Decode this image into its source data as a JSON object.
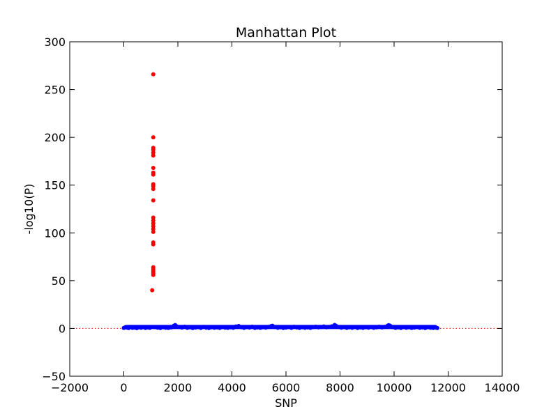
{
  "chart_data": {
    "type": "scatter",
    "title": "Manhattan Plot",
    "xlabel": "SNP",
    "ylabel": "-log10(P)",
    "xlim": [
      -2000,
      14000
    ],
    "ylim": [
      -50,
      300
    ],
    "xticks": [
      -2000,
      0,
      2000,
      4000,
      6000,
      8000,
      10000,
      12000,
      14000
    ],
    "yticks": [
      -50,
      0,
      50,
      100,
      150,
      200,
      250,
      300
    ],
    "xtick_labels": [
      "−2000",
      "0",
      "2000",
      "4000",
      "6000",
      "8000",
      "10000",
      "12000",
      "14000"
    ],
    "ytick_labels": [
      "−50",
      "0",
      "50",
      "100",
      "150",
      "200",
      "250",
      "300"
    ],
    "threshold": {
      "y": 0,
      "color": "#ff0000",
      "style": "dotted"
    },
    "grid": false,
    "series": [
      {
        "color": "#ff0000",
        "points": [
          [
            1090,
            266
          ],
          [
            1090,
            200
          ],
          [
            1090,
            189
          ],
          [
            1090,
            187
          ],
          [
            1090,
            184
          ],
          [
            1090,
            181
          ],
          [
            1090,
            168
          ],
          [
            1090,
            163
          ],
          [
            1090,
            161
          ],
          [
            1090,
            151
          ],
          [
            1090,
            149
          ],
          [
            1090,
            146
          ],
          [
            1090,
            134
          ],
          [
            1090,
            116
          ],
          [
            1090,
            113
          ],
          [
            1090,
            110
          ],
          [
            1090,
            107
          ],
          [
            1090,
            104
          ],
          [
            1090,
            101
          ],
          [
            1090,
            90
          ],
          [
            1090,
            88
          ],
          [
            1090,
            64
          ],
          [
            1090,
            62
          ],
          [
            1090,
            60
          ],
          [
            1090,
            58
          ],
          [
            1090,
            56
          ],
          [
            1050,
            40
          ]
        ]
      },
      {
        "color": "#0000ff",
        "x_range": [
          0,
          11600
        ],
        "points": [
          [
            0,
            0.5
          ],
          [
            60,
            1.2
          ],
          [
            120,
            0.8
          ],
          [
            180,
            0.4
          ],
          [
            250,
            1.5
          ],
          [
            320,
            0.6
          ],
          [
            400,
            0.9
          ],
          [
            480,
            0.3
          ],
          [
            560,
            1.1
          ],
          [
            640,
            0.7
          ],
          [
            720,
            1.4
          ],
          [
            800,
            0.5
          ],
          [
            880,
            1.0
          ],
          [
            960,
            0.6
          ],
          [
            1150,
            1.3
          ],
          [
            1250,
            0.8
          ],
          [
            1350,
            0.4
          ],
          [
            1450,
            1.2
          ],
          [
            1550,
            0.7
          ],
          [
            1650,
            0.5
          ],
          [
            1750,
            1.0
          ],
          [
            1850,
            2.8
          ],
          [
            1900,
            3.5
          ],
          [
            1950,
            2.2
          ],
          [
            2050,
            1.5
          ],
          [
            2150,
            0.9
          ],
          [
            2250,
            1.8
          ],
          [
            2350,
            0.6
          ],
          [
            2450,
            1.1
          ],
          [
            2550,
            0.4
          ],
          [
            2650,
            0.9
          ],
          [
            2750,
            1.3
          ],
          [
            2850,
            0.5
          ],
          [
            2950,
            1.6
          ],
          [
            3050,
            0.8
          ],
          [
            3150,
            0.4
          ],
          [
            3250,
            1.2
          ],
          [
            3350,
            0.7
          ],
          [
            3450,
            1.0
          ],
          [
            3550,
            0.5
          ],
          [
            3650,
            1.4
          ],
          [
            3750,
            0.8
          ],
          [
            3850,
            0.6
          ],
          [
            3950,
            1.1
          ],
          [
            4050,
            0.7
          ],
          [
            4150,
            2.0
          ],
          [
            4250,
            2.5
          ],
          [
            4350,
            1.2
          ],
          [
            4450,
            0.6
          ],
          [
            4550,
            1.3
          ],
          [
            4650,
            0.9
          ],
          [
            4750,
            1.8
          ],
          [
            4850,
            0.5
          ],
          [
            4950,
            1.0
          ],
          [
            5050,
            0.6
          ],
          [
            5150,
            1.2
          ],
          [
            5250,
            0.8
          ],
          [
            5350,
            1.6
          ],
          [
            5450,
            2.4
          ],
          [
            5500,
            2.8
          ],
          [
            5600,
            1.4
          ],
          [
            5700,
            0.7
          ],
          [
            5800,
            1.1
          ],
          [
            5900,
            0.5
          ],
          [
            6000,
            0.9
          ],
          [
            6100,
            1.4
          ],
          [
            6200,
            0.6
          ],
          [
            6300,
            1.7
          ],
          [
            6400,
            1.0
          ],
          [
            6500,
            0.5
          ],
          [
            6600,
            1.2
          ],
          [
            6700,
            0.7
          ],
          [
            6800,
            1.0
          ],
          [
            6900,
            0.6
          ],
          [
            7000,
            1.3
          ],
          [
            7100,
            1.8
          ],
          [
            7200,
            1.1
          ],
          [
            7300,
            1.5
          ],
          [
            7400,
            2.0
          ],
          [
            7500,
            1.2
          ],
          [
            7600,
            1.6
          ],
          [
            7700,
            2.2
          ],
          [
            7800,
            3.6
          ],
          [
            7850,
            2.8
          ],
          [
            7950,
            1.5
          ],
          [
            8050,
            0.8
          ],
          [
            8150,
            1.3
          ],
          [
            8250,
            0.6
          ],
          [
            8350,
            1.1
          ],
          [
            8450,
            0.7
          ],
          [
            8550,
            1.4
          ],
          [
            8650,
            0.5
          ],
          [
            8750,
            1.0
          ],
          [
            8850,
            0.6
          ],
          [
            8950,
            1.2
          ],
          [
            9050,
            0.8
          ],
          [
            9150,
            1.5
          ],
          [
            9250,
            0.7
          ],
          [
            9350,
            1.1
          ],
          [
            9450,
            1.8
          ],
          [
            9550,
            1.0
          ],
          [
            9650,
            1.6
          ],
          [
            9750,
            2.6
          ],
          [
            9800,
            3.4
          ],
          [
            9850,
            2.9
          ],
          [
            9950,
            1.4
          ],
          [
            10050,
            0.6
          ],
          [
            10150,
            1.0
          ],
          [
            10250,
            0.5
          ],
          [
            10350,
            1.3
          ],
          [
            10450,
            0.7
          ],
          [
            10550,
            1.1
          ],
          [
            10650,
            0.5
          ],
          [
            10750,
            0.9
          ],
          [
            10850,
            1.4
          ],
          [
            10950,
            0.6
          ],
          [
            11050,
            1.0
          ],
          [
            11150,
            0.4
          ],
          [
            11250,
            1.2
          ],
          [
            11350,
            0.7
          ],
          [
            11450,
            0.5
          ],
          [
            11550,
            0.9
          ],
          [
            11600,
            0.4
          ]
        ]
      }
    ]
  }
}
